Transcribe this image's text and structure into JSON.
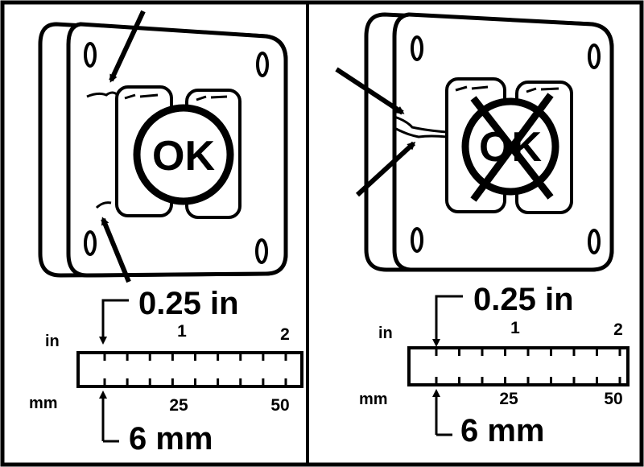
{
  "colors": {
    "ink": "#000000",
    "paper": "#ffffff"
  },
  "panels": [
    {
      "status_label": "OK",
      "status_crossed": false,
      "measure_in": "0.25 in",
      "measure_mm": "6 mm",
      "ruler": {
        "in_unit": "in",
        "mm_unit": "mm",
        "in_ticks": [
          "1",
          "2"
        ],
        "mm_ticks": [
          "25",
          "50"
        ]
      }
    },
    {
      "status_label": "OK",
      "status_crossed": true,
      "measure_in": "0.25 in",
      "measure_mm": "6 mm",
      "ruler": {
        "in_unit": "in",
        "mm_unit": "mm",
        "in_ticks": [
          "1",
          "2"
        ],
        "mm_ticks": [
          "25",
          "50"
        ]
      }
    }
  ]
}
